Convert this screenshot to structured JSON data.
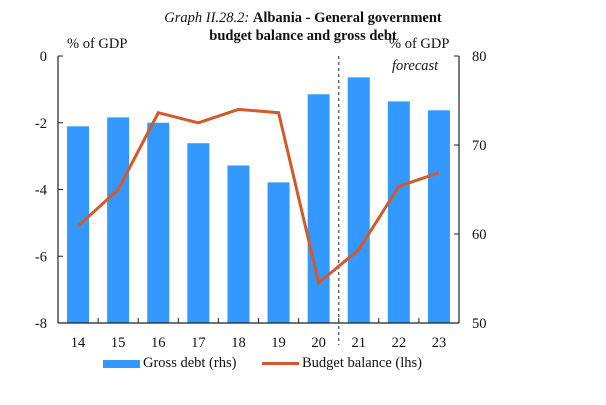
{
  "chart_data": {
    "type": "bar+line",
    "title_prefix": "Graph II.28.2:",
    "title_main": "Albania - General government",
    "title_line2": "budget balance and gross debt",
    "left_axis_label": "% of GDP",
    "right_axis_label": "% of GDP",
    "annotation": "forecast",
    "forecast_start_category": "21",
    "categories": [
      "14",
      "15",
      "16",
      "17",
      "18",
      "19",
      "20",
      "21",
      "22",
      "23"
    ],
    "left_axis": {
      "min": -8,
      "max": 0,
      "ticks": [
        0,
        -2,
        -4,
        -6,
        -8
      ],
      "tick_labels": [
        "0",
        "-2",
        "-4",
        "-6",
        "-8"
      ]
    },
    "right_axis": {
      "min": 50,
      "max": 80,
      "ticks": [
        80,
        70,
        60,
        50
      ],
      "tick_labels": [
        "80",
        "70",
        "60",
        "50"
      ]
    },
    "grid": false,
    "legend_position": "bottom",
    "series": [
      {
        "name": "Gross debt (rhs)",
        "type": "bar",
        "axis": "right",
        "color": "#3399FF",
        "values": [
          72.1,
          73.1,
          72.5,
          70.2,
          67.7,
          65.8,
          75.7,
          77.6,
          74.9,
          73.9
        ]
      },
      {
        "name": "Budget balance (lhs)",
        "type": "line",
        "axis": "left",
        "color": "#D4582A",
        "values": [
          -5.1,
          -4.0,
          -1.7,
          -2.0,
          -1.6,
          -1.7,
          -6.8,
          -5.8,
          -3.9,
          -3.5
        ]
      }
    ]
  }
}
